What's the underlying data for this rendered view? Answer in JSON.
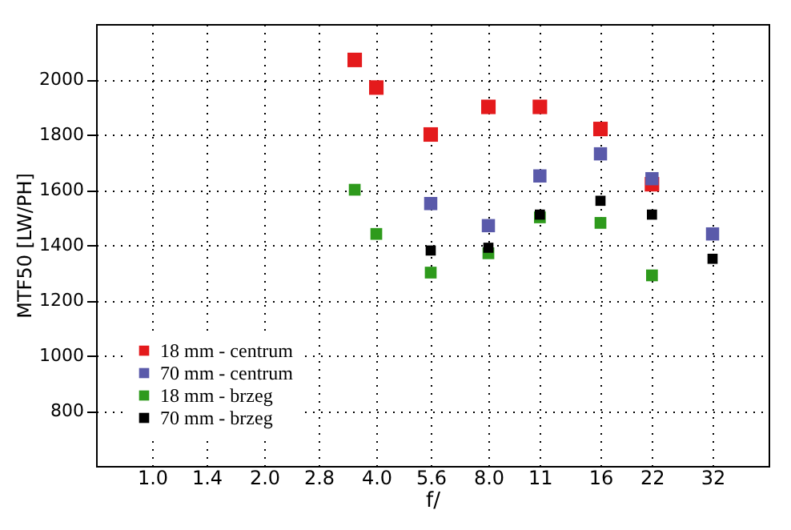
{
  "chart_data": {
    "type": "scatter",
    "xlabel": "f/",
    "ylabel": "MTF50 [LW/PH]",
    "log": "x",
    "marker": "square",
    "grid": true,
    "legend": "bottom left",
    "xlim": [
      0.707,
      45.25
    ],
    "ylim": [
      600,
      2200
    ],
    "xticks": [
      {
        "value": 1.0,
        "label": "1.0"
      },
      1.4,
      {
        "value": 2.0,
        "label": "2.0"
      },
      2.8,
      {
        "value": 4.0,
        "label": "4.0"
      },
      5.6,
      {
        "value": 8.0,
        "label": "8.0"
      },
      11,
      16,
      22,
      32
    ],
    "yticks": [
      800,
      1000,
      1200,
      1400,
      1600,
      1800,
      2000
    ],
    "series": [
      {
        "name": "18 mm - centrum",
        "color": "#e41a1c",
        "x": [
          3.5,
          4.0,
          5.6,
          8.0,
          11,
          16,
          22
        ],
        "values": [
          2070,
          1970,
          1800,
          1900,
          1900,
          1820,
          1620
        ]
      },
      {
        "name": "70 mm - centrum",
        "color": "#5a5aaa",
        "x": [
          5.6,
          8.0,
          11,
          16,
          22,
          32
        ],
        "values": [
          1550,
          1470,
          1650,
          1730,
          1640,
          1440
        ]
      },
      {
        "name": "18 mm - brzeg",
        "color": "#2e9a1c",
        "x": [
          3.5,
          4.0,
          5.6,
          8.0,
          11,
          16,
          22
        ],
        "values": [
          1600,
          1440,
          1300,
          1370,
          1500,
          1480,
          1290
        ]
      },
      {
        "name": "70 mm - brzeg",
        "color": "#000000",
        "x": [
          5.6,
          8.0,
          11,
          16,
          22,
          32
        ],
        "values": [
          1380,
          1390,
          1510,
          1560,
          1510,
          1350
        ]
      }
    ]
  }
}
